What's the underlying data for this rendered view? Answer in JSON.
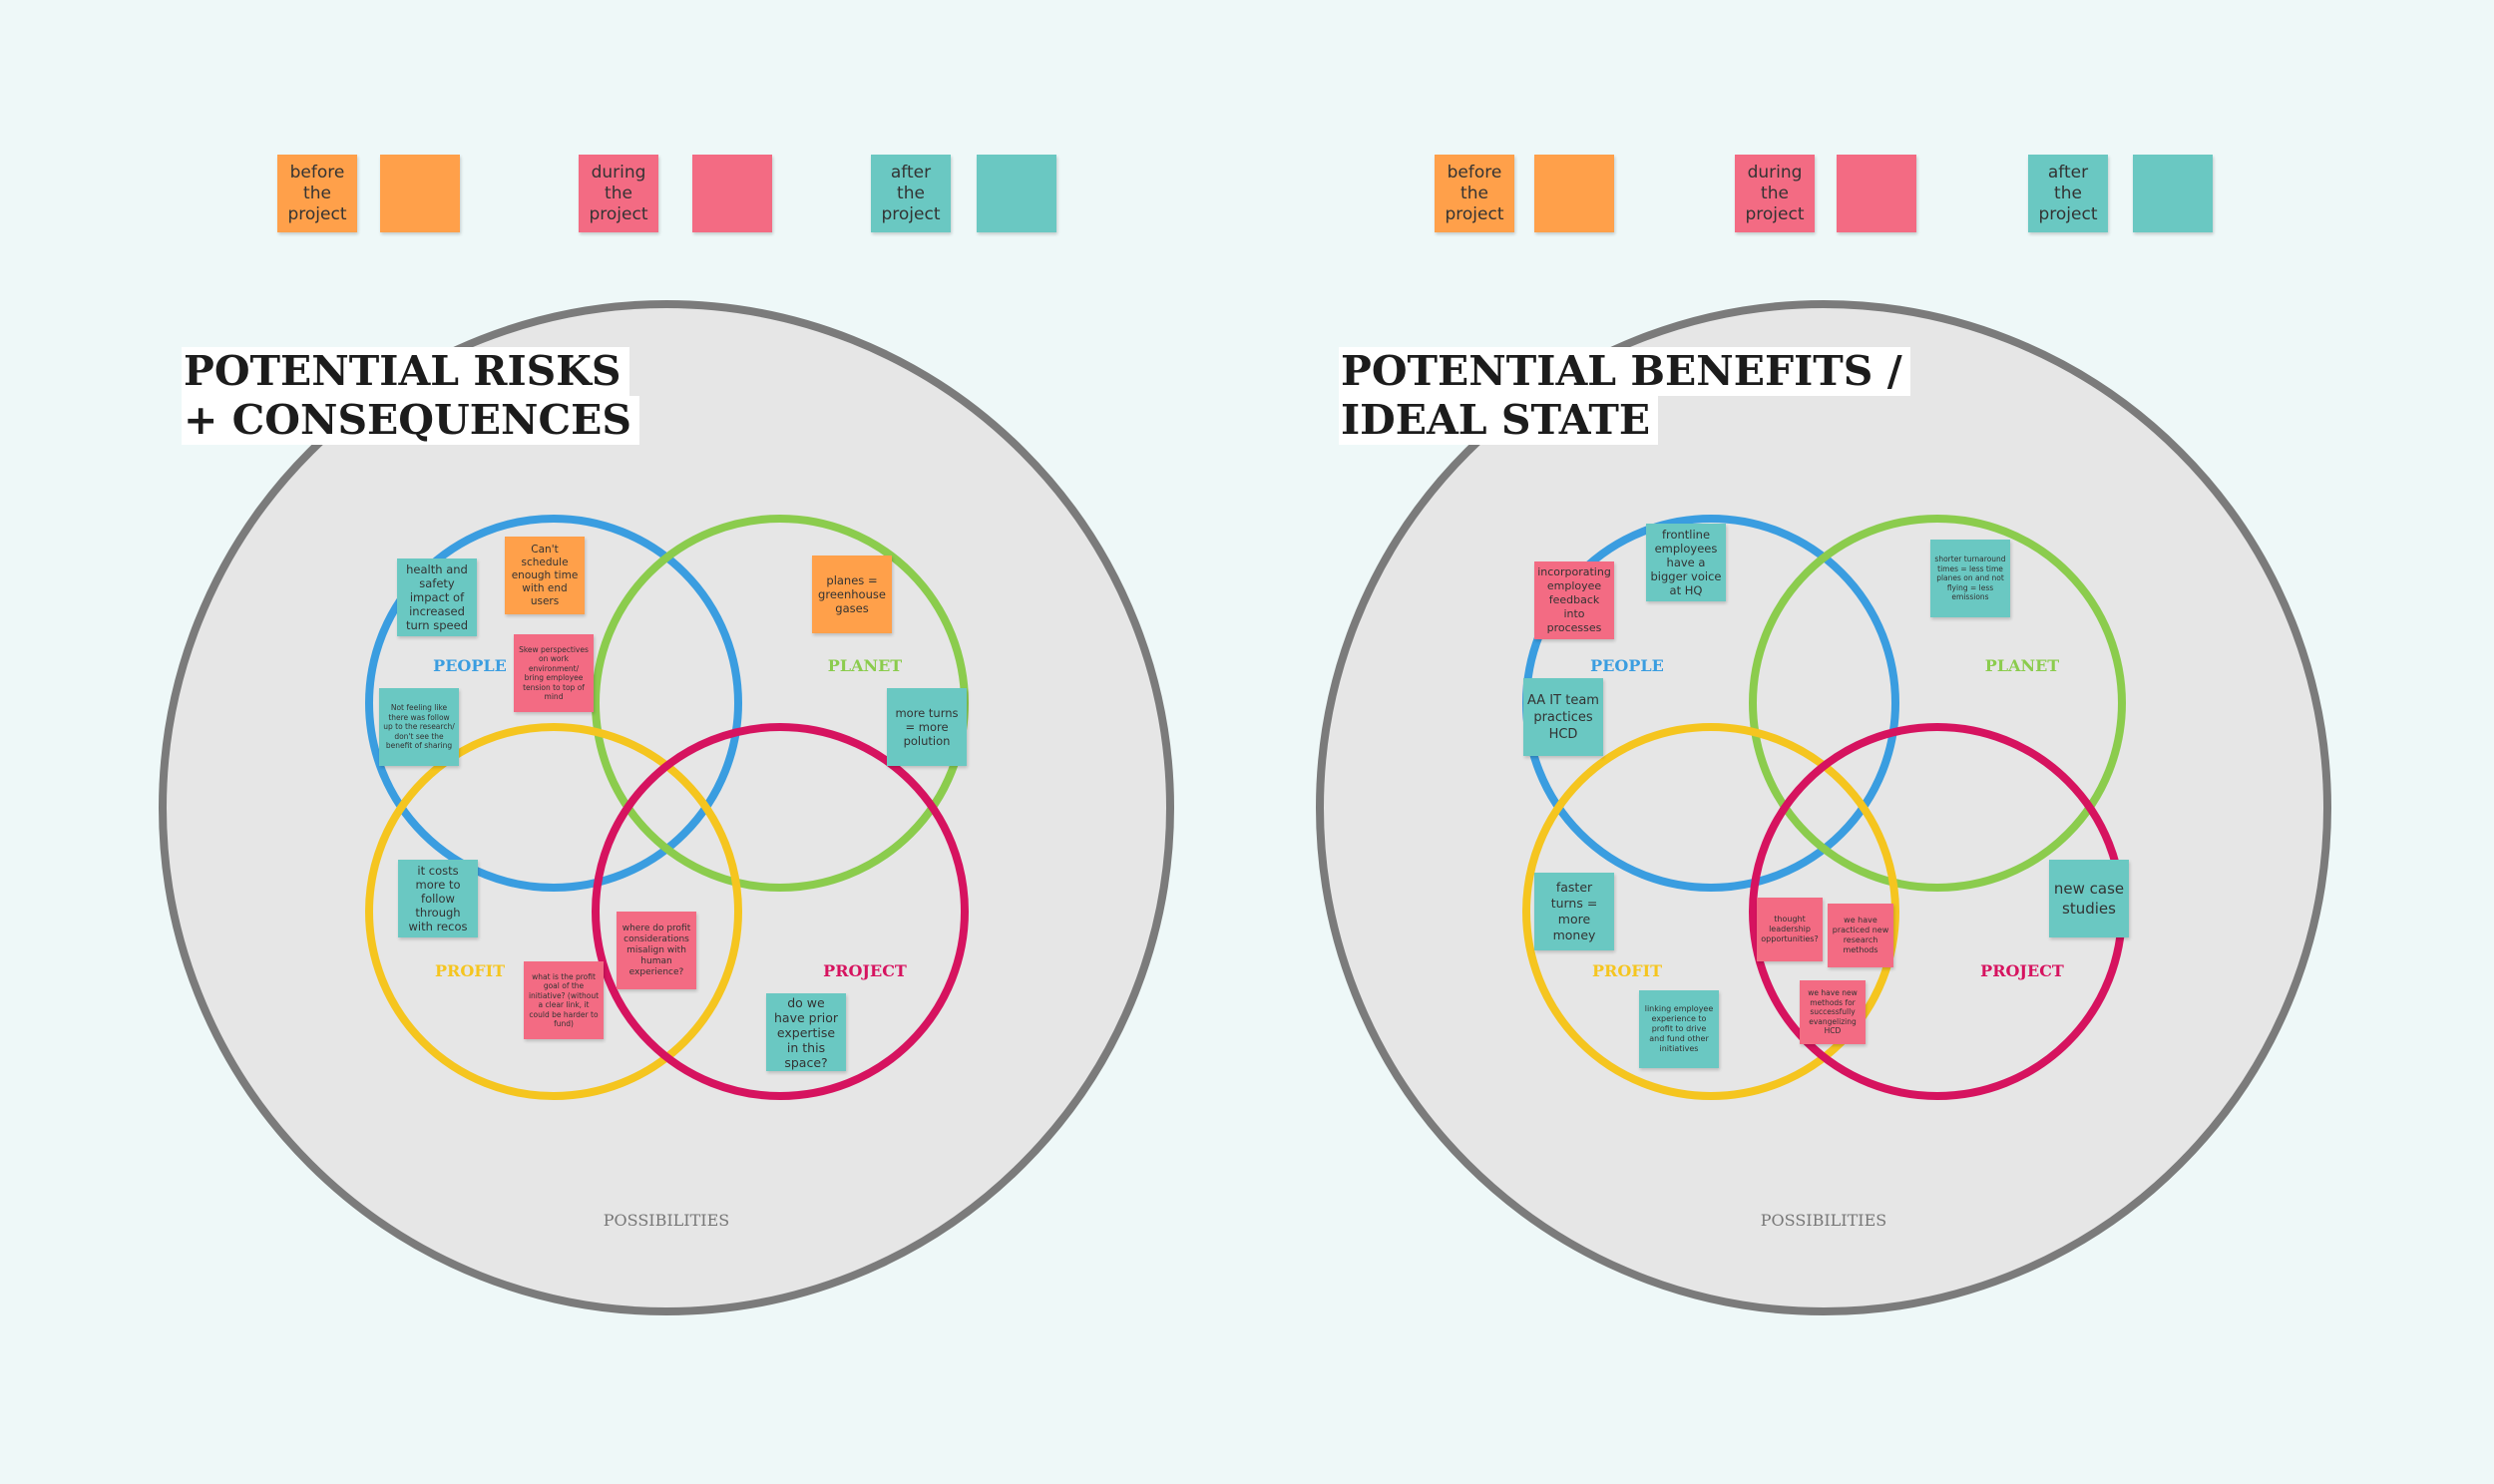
{
  "colors": {
    "background": "#eef8f8",
    "orange": "#ffa04a",
    "pink": "#f36b83",
    "teal": "#6ac8c2",
    "people": "#3a9de0",
    "planet": "#8bcc4d",
    "profit": "#f5c51f",
    "project": "#d6135f",
    "outer_fill": "#e6e6e6",
    "outer_stroke": "#7b7b7b"
  },
  "legend": {
    "before": "before the project",
    "during": "during the project",
    "after": "after the project"
  },
  "boards": {
    "risks": {
      "title_line1": "POTENTIAL RISKS",
      "title_line2": "+ CONSEQUENCES",
      "people": "PEOPLE",
      "planet": "PLANET",
      "profit": "PROFIT",
      "project": "PROJECT",
      "possibilities": "POSSIBILITIES",
      "notes": [
        "health and safety impact of increased turn speed",
        "Can't schedule enough time with end users",
        "Skew perspectives on work environment/ bring employee tension to top of mind",
        "Not feeling like there was follow up to the research/ don't see the benefit of sharing",
        "planes = greenhouse gases",
        "more turns = more polution",
        "it costs more to follow through with recos",
        "where do profit considerations misalign with human experience?",
        "what is the profit goal of the initiative? (without a clear link, it could be harder to fund)",
        "do we have prior expertise in this space?"
      ]
    },
    "benefits": {
      "title_line1": "POTENTIAL BENEFITS /",
      "title_line2": "IDEAL STATE",
      "people": "PEOPLE",
      "planet": "PLANET",
      "profit": "PROFIT",
      "project": "PROJECT",
      "possibilities": "POSSIBILITIES",
      "notes": [
        "frontline employees have a bigger voice at HQ",
        "incorporating employee feedback into processes",
        "AA IT team practices HCD",
        "shorter turnaround times = less time planes on and not flying = less emissions",
        "faster turns = more money",
        "thought leadership opportunities?",
        "we have practiced new research methods",
        "we have new methods for successfully evangelizing HCD",
        "linking employee experience to profit to drive and fund other initiatives",
        "new case studies"
      ]
    }
  }
}
